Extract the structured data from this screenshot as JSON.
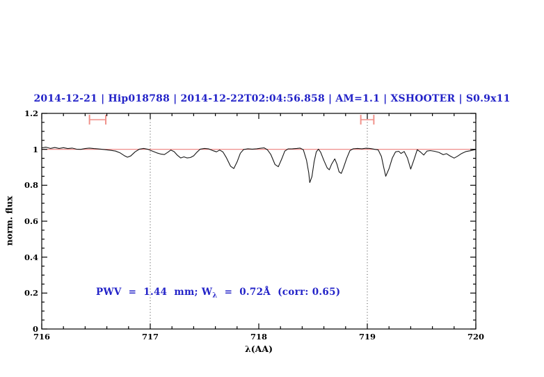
{
  "title": "2014-12-21 | Hip018788 | 2014-12-22T02:04:56.858 | AM=1.1 | XSHOOTER | S0.9x11",
  "colors": {
    "title_blue": "#2323c8",
    "annotation_blue": "#2323c8",
    "continuum_red": "#ee7f7c",
    "marker_pink": "#f0928b",
    "spectrum_black": "#161616",
    "dotted_line": "#3f3f3f",
    "frame_black": "#000000"
  },
  "annotation": {
    "prefix": "PWV  =  1.44  mm; W",
    "subscript": "λ",
    "suffix": "  =  0.72Å  (corr: 0.65)"
  },
  "chart_data": {
    "type": "line",
    "title": "2014-12-21 | Hip018788 | 2014-12-22T02:04:56.858 | AM=1.1 | XSHOOTER | S0.9x11",
    "xlabel": "λ(AA)",
    "ylabel": "norm. flux",
    "xlim": [
      716,
      720
    ],
    "ylim": [
      0,
      1.2
    ],
    "grid": false,
    "x_major_ticks": [
      716,
      717,
      718,
      719,
      720
    ],
    "x_tick_labels": [
      "716",
      "717",
      "718",
      "719",
      "720"
    ],
    "x_minor_step": 0.2,
    "y_major_ticks": [
      0,
      0.2,
      0.4,
      0.6,
      0.8,
      1,
      1.2
    ],
    "y_tick_labels": [
      "0",
      "0.2",
      "0.4",
      "0.6",
      "0.8",
      "1",
      "1.2"
    ],
    "y_minor_step": 0.05,
    "continuum_level": 1.0,
    "dotted_vlines": [
      717,
      719
    ],
    "range_markers": [
      {
        "x1": 716.44,
        "x2": 716.59,
        "y": 1.165
      },
      {
        "x1": 718.94,
        "x2": 719.06,
        "y": 1.165
      }
    ],
    "annotation_text": "PWV = 1.44 mm; Wλ = 0.72Å (corr: 0.65)",
    "series": [
      {
        "name": "telluric-spectrum",
        "x": [
          716.0,
          716.04,
          716.08,
          716.12,
          716.16,
          716.2,
          716.24,
          716.28,
          716.32,
          716.36,
          716.4,
          716.44,
          716.48,
          716.52,
          716.56,
          716.6,
          716.64,
          716.68,
          716.72,
          716.76,
          716.79,
          716.82,
          716.86,
          716.9,
          716.94,
          716.98,
          717.02,
          717.06,
          717.1,
          717.13,
          717.16,
          717.19,
          717.22,
          717.25,
          717.28,
          717.31,
          717.34,
          717.37,
          717.4,
          717.43,
          717.46,
          717.5,
          717.54,
          717.58,
          717.61,
          717.64,
          717.67,
          717.7,
          717.74,
          717.77,
          717.8,
          717.83,
          717.86,
          717.9,
          717.94,
          717.98,
          718.02,
          718.05,
          718.08,
          718.11,
          718.15,
          718.18,
          718.21,
          718.24,
          718.27,
          718.31,
          718.35,
          718.38,
          718.41,
          718.44,
          718.46,
          718.47,
          718.49,
          718.51,
          718.53,
          718.55,
          718.57,
          718.6,
          718.63,
          718.65,
          718.67,
          718.7,
          718.72,
          718.74,
          718.76,
          718.78,
          718.81,
          718.84,
          718.87,
          718.91,
          718.95,
          718.99,
          719.03,
          719.07,
          719.1,
          719.13,
          719.15,
          719.17,
          719.2,
          719.23,
          719.26,
          719.29,
          719.31,
          719.34,
          719.37,
          719.4,
          719.43,
          719.46,
          719.49,
          719.52,
          719.55,
          719.58,
          719.62,
          719.66,
          719.7,
          719.73,
          719.76,
          719.8,
          719.83,
          719.87,
          719.91,
          719.95,
          720.0
        ],
        "y": [
          1.008,
          1.012,
          1.005,
          1.01,
          1.005,
          1.009,
          1.004,
          1.007,
          1.001,
          1.0,
          1.004,
          1.007,
          1.004,
          1.002,
          1.0,
          0.997,
          0.994,
          0.99,
          0.981,
          0.965,
          0.956,
          0.963,
          0.986,
          1.001,
          1.005,
          1.0,
          0.99,
          0.98,
          0.973,
          0.971,
          0.983,
          0.996,
          0.987,
          0.967,
          0.952,
          0.958,
          0.952,
          0.954,
          0.964,
          0.984,
          1.001,
          1.005,
          1.002,
          0.992,
          0.986,
          0.996,
          0.985,
          0.955,
          0.906,
          0.893,
          0.93,
          0.978,
          0.999,
          1.003,
          1.001,
          1.003,
          1.006,
          1.008,
          0.997,
          0.972,
          0.915,
          0.903,
          0.945,
          0.99,
          1.002,
          1.003,
          1.005,
          1.007,
          0.998,
          0.94,
          0.87,
          0.815,
          0.848,
          0.932,
          0.986,
          1.001,
          0.984,
          0.938,
          0.897,
          0.886,
          0.916,
          0.947,
          0.918,
          0.875,
          0.866,
          0.897,
          0.95,
          0.993,
          1.003,
          1.005,
          1.003,
          1.006,
          1.004,
          1.0,
          0.997,
          0.96,
          0.903,
          0.85,
          0.892,
          0.951,
          0.986,
          0.989,
          0.977,
          0.988,
          0.952,
          0.89,
          0.942,
          0.998,
          0.985,
          0.968,
          0.99,
          0.993,
          0.989,
          0.983,
          0.97,
          0.976,
          0.964,
          0.951,
          0.961,
          0.977,
          0.988,
          0.992,
          0.999
        ]
      }
    ]
  }
}
